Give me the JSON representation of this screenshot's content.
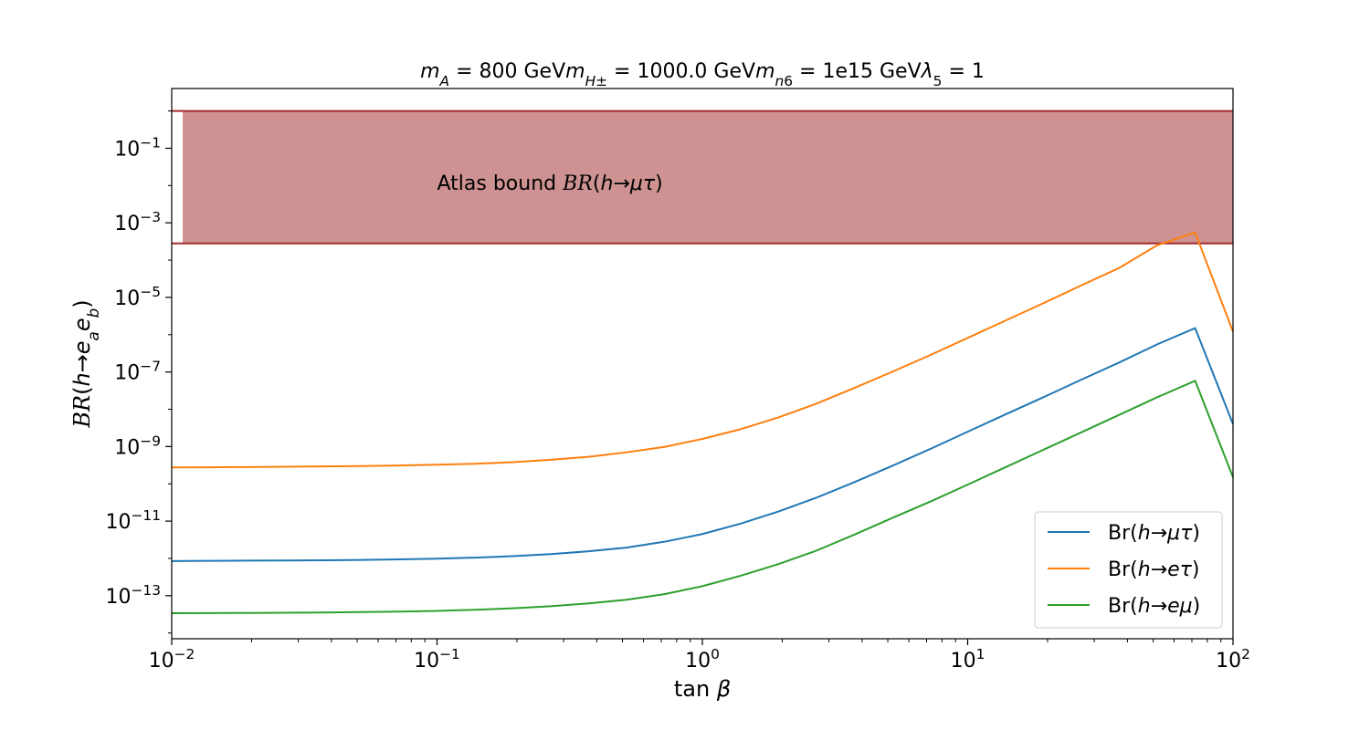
{
  "chart_data": {
    "type": "line",
    "title": "m_A = 800 GeVm_{H^±} = 1000.0 GeVm_{n_6} = 1e15 GeVλ_5 = 1",
    "title_parts": [
      "m",
      "A",
      " = 800 GeV",
      "m",
      "H±",
      " = 1000.0 GeV",
      "m",
      "n",
      "6",
      " = 1e15 GeV",
      "λ",
      "5",
      " = 1"
    ],
    "xlabel": "tan β",
    "xlabel_parts": [
      "tan ",
      "β"
    ],
    "ylabel": "BR(h→e_a e_b)",
    "ylabel_parts": [
      "BR",
      "(",
      "h",
      "→",
      "e",
      "a",
      "e",
      "b",
      ")"
    ],
    "xscale": "log",
    "yscale": "log",
    "xlim": [
      0.01,
      100
    ],
    "ylim": [
      7e-15,
      4
    ],
    "x_ticks": [
      {
        "value": 0.01,
        "base": "10",
        "exp": "−2"
      },
      {
        "value": 0.1,
        "base": "10",
        "exp": "−1"
      },
      {
        "value": 1,
        "base": "10",
        "exp": "0"
      },
      {
        "value": 10,
        "base": "10",
        "exp": "1"
      },
      {
        "value": 100,
        "base": "10",
        "exp": "2"
      }
    ],
    "y_ticks": [
      {
        "value": 1e-13,
        "base": "10",
        "exp": "−13"
      },
      {
        "value": 1e-11,
        "base": "10",
        "exp": "−11"
      },
      {
        "value": 1e-09,
        "base": "10",
        "exp": "−9"
      },
      {
        "value": 1e-07,
        "base": "10",
        "exp": "−7"
      },
      {
        "value": 1e-05,
        "base": "10",
        "exp": "−5"
      },
      {
        "value": 0.001,
        "base": "10",
        "exp": "−3"
      },
      {
        "value": 0.1,
        "base": "10",
        "exp": "−1"
      }
    ],
    "bound_band": {
      "x_start": 0.011,
      "x_end": 100,
      "y_low": 0.00028,
      "y_high": 1.0,
      "color": "#ce9292",
      "edge_color": "#a52a2a",
      "label": "Atlas bound BR(h→μτ)",
      "label_parts": [
        "Atlas bound ",
        "BR",
        "(",
        "h",
        "→",
        "μτ",
        ")"
      ],
      "label_x": 0.1,
      "label_y": 0.012
    },
    "x": [
      0.01,
      0.0139,
      0.0193,
      0.0268,
      0.0373,
      0.0518,
      0.072,
      0.1,
      0.139,
      0.193,
      0.268,
      0.373,
      0.518,
      0.72,
      1.0,
      1.39,
      1.93,
      2.68,
      3.73,
      5.18,
      7.2,
      10.0,
      13.9,
      19.3,
      26.8,
      37.3,
      51.8,
      72.0,
      100
    ],
    "series": [
      {
        "name": "Br(h→μτ)",
        "name_parts": [
          "Br(",
          "h",
          "→",
          "μτ",
          ")"
        ],
        "color": "#1f77b4",
        "values": [
          8.5e-13,
          8.6e-13,
          8.7e-13,
          8.8e-13,
          8.9e-13,
          9.1e-13,
          9.4e-13,
          9.8e-13,
          1.05e-12,
          1.15e-12,
          1.3e-12,
          1.55e-12,
          1.95e-12,
          2.8e-12,
          4.5e-12,
          8.5e-12,
          1.8e-11,
          4.2e-11,
          1.1e-10,
          3e-10,
          8.5e-10,
          2.5e-09,
          7.3e-09,
          2.1e-08,
          6.2e-08,
          1.8e-07,
          5.5e-07,
          1.5e-06,
          4e-09
        ]
      },
      {
        "name": "Br(h→eτ)",
        "name_parts": [
          "Br(",
          "h",
          "→",
          "eτ",
          ")"
        ],
        "color": "#ff7f0e",
        "values": [
          2.75e-10,
          2.78e-10,
          2.82e-10,
          2.87e-10,
          2.93e-10,
          3e-10,
          3.1e-10,
          3.25e-10,
          3.45e-10,
          3.8e-10,
          4.4e-10,
          5.3e-10,
          7e-10,
          9.8e-10,
          1.6e-09,
          2.9e-09,
          6e-09,
          1.4e-08,
          3.7e-08,
          1e-07,
          2.8e-07,
          8.2e-07,
          2.4e-06,
          7e-06,
          2.1e-05,
          6.2e-05,
          0.00025,
          0.00055,
          1.2e-06
        ]
      },
      {
        "name": "Br(h→eμ)",
        "name_parts": [
          "Br(",
          "h",
          "→",
          "eμ",
          ")"
        ],
        "color": "#2ca02c",
        "values": [
          3.4e-14,
          3.42e-14,
          3.45e-14,
          3.5e-14,
          3.55e-14,
          3.63e-14,
          3.75e-14,
          3.9e-14,
          4.2e-14,
          4.6e-14,
          5.2e-14,
          6.2e-14,
          7.8e-14,
          1.1e-13,
          1.8e-13,
          3.4e-13,
          7e-13,
          1.6e-12,
          4.3e-12,
          1.2e-11,
          3.3e-11,
          9.5e-11,
          2.8e-10,
          8.2e-10,
          2.4e-09,
          7.1e-09,
          2.1e-08,
          5.8e-08,
          1.5e-10
        ]
      }
    ],
    "legend_position": "lower-right",
    "grid": false
  }
}
